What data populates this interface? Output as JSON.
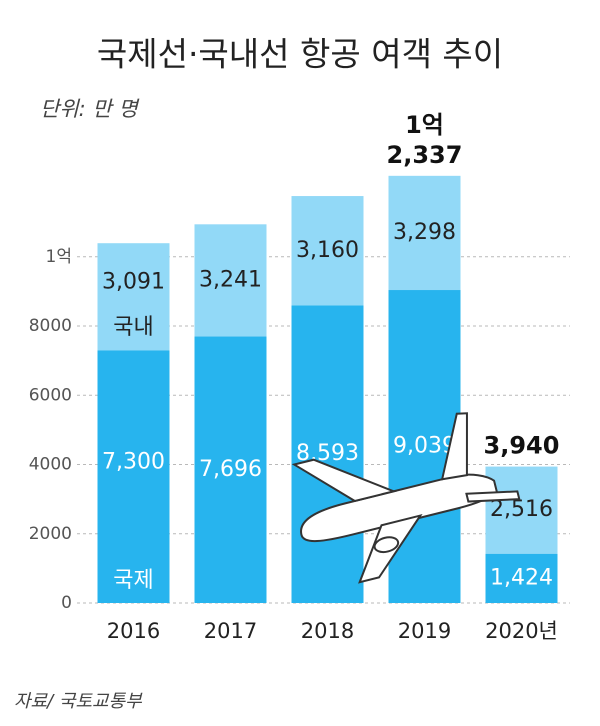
{
  "chart_data": {
    "type": "stacked_bar",
    "title": "국제선·국내선 항공 여객 추이",
    "subtitle": "단위: 만 명",
    "source": "자료/ 국토교통부",
    "categories": [
      "2016",
      "2017",
      "2018",
      "2019",
      "2020년"
    ],
    "series": [
      {
        "name": "국제",
        "color": "#27b4ee",
        "text_color": "#ffffff",
        "values": [
          7300,
          7696,
          8593,
          9039,
          1424
        ],
        "value_labels": [
          "7,300",
          "7,696",
          "8,593",
          "9,039",
          "1,424"
        ]
      },
      {
        "name": "국내",
        "color": "#92d9f7",
        "text_color": "#222222",
        "values": [
          3091,
          3241,
          3160,
          3298,
          2516
        ],
        "value_labels": [
          "3,091",
          "3,241",
          "3,160",
          "3,298",
          "2,516"
        ]
      }
    ],
    "annotations": [
      {
        "category": "2019",
        "value": 12337,
        "lines": [
          "1억",
          "2,337"
        ]
      },
      {
        "category": "2020년",
        "value": 3940,
        "lines": [
          "3,940"
        ]
      }
    ],
    "ylim": [
      0,
      13000
    ],
    "yticks": [
      0,
      2000,
      4000,
      6000,
      8000,
      {
        "value": 10000,
        "label": "1억"
      }
    ],
    "grid": true
  }
}
